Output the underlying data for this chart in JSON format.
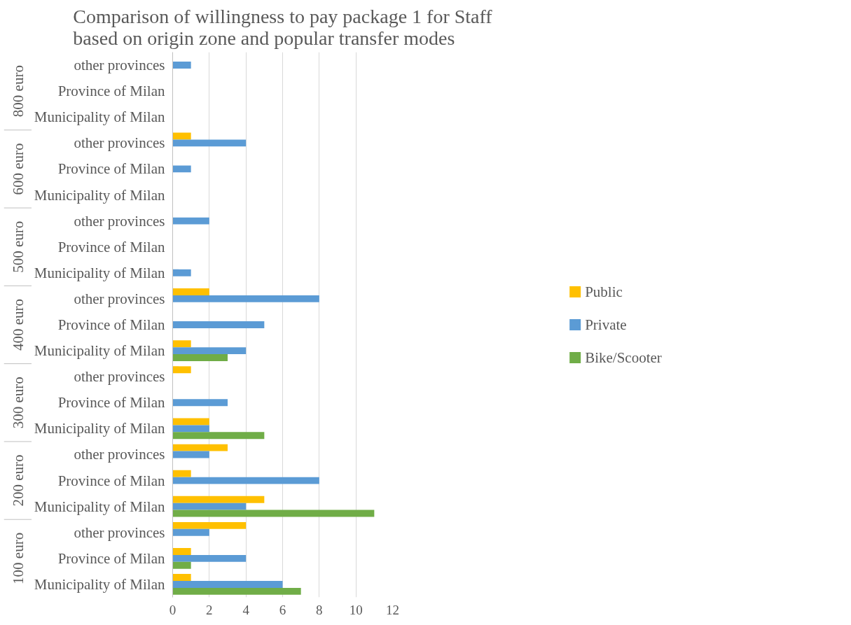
{
  "chart_data": {
    "type": "bar",
    "orientation": "horizontal",
    "title": "Comparison of willingness to pay package 1 for Staff based on origin zone and popular transfer modes",
    "categories": [
      "other provinces",
      "Province of Milan",
      "Municipality of Milan",
      "other provinces",
      "Province of Milan",
      "Municipality of Milan",
      "other provinces",
      "Province of Milan",
      "Municipality of Milan",
      "other provinces",
      "Province of Milan",
      "Municipality of Milan",
      "other provinces",
      "Province of Milan",
      "Municipality of Milan",
      "other provinces",
      "Province of Milan",
      "Municipality of Milan",
      "other provinces",
      "Province of Milan",
      "Municipality of Milan"
    ],
    "annotations": [
      "800 euro",
      "600 euro",
      "500 euro",
      "400 euro",
      "300 euro",
      "200 euro",
      "100 euro"
    ],
    "series": [
      {
        "name": "Public",
        "color": "#ffc000",
        "values": [
          null,
          null,
          null,
          1,
          null,
          null,
          null,
          null,
          null,
          2,
          null,
          1,
          1,
          null,
          2,
          3,
          1,
          5,
          4,
          1,
          1
        ]
      },
      {
        "name": "Private",
        "color": "#5b9bd5",
        "values": [
          1,
          null,
          null,
          4,
          1,
          null,
          2,
          null,
          1,
          8,
          5,
          4,
          null,
          3,
          2,
          2,
          8,
          4,
          2,
          4,
          6
        ]
      },
      {
        "name": "Bike/Scooter",
        "color": "#70ad47",
        "values": [
          null,
          null,
          null,
          null,
          null,
          null,
          null,
          null,
          null,
          null,
          null,
          3,
          null,
          null,
          5,
          null,
          null,
          11,
          null,
          1,
          7
        ]
      }
    ],
    "xlim": [
      0,
      12
    ],
    "xticks": [
      0,
      2,
      4,
      6,
      8,
      10,
      12
    ],
    "grid": "x",
    "legend": "right"
  }
}
